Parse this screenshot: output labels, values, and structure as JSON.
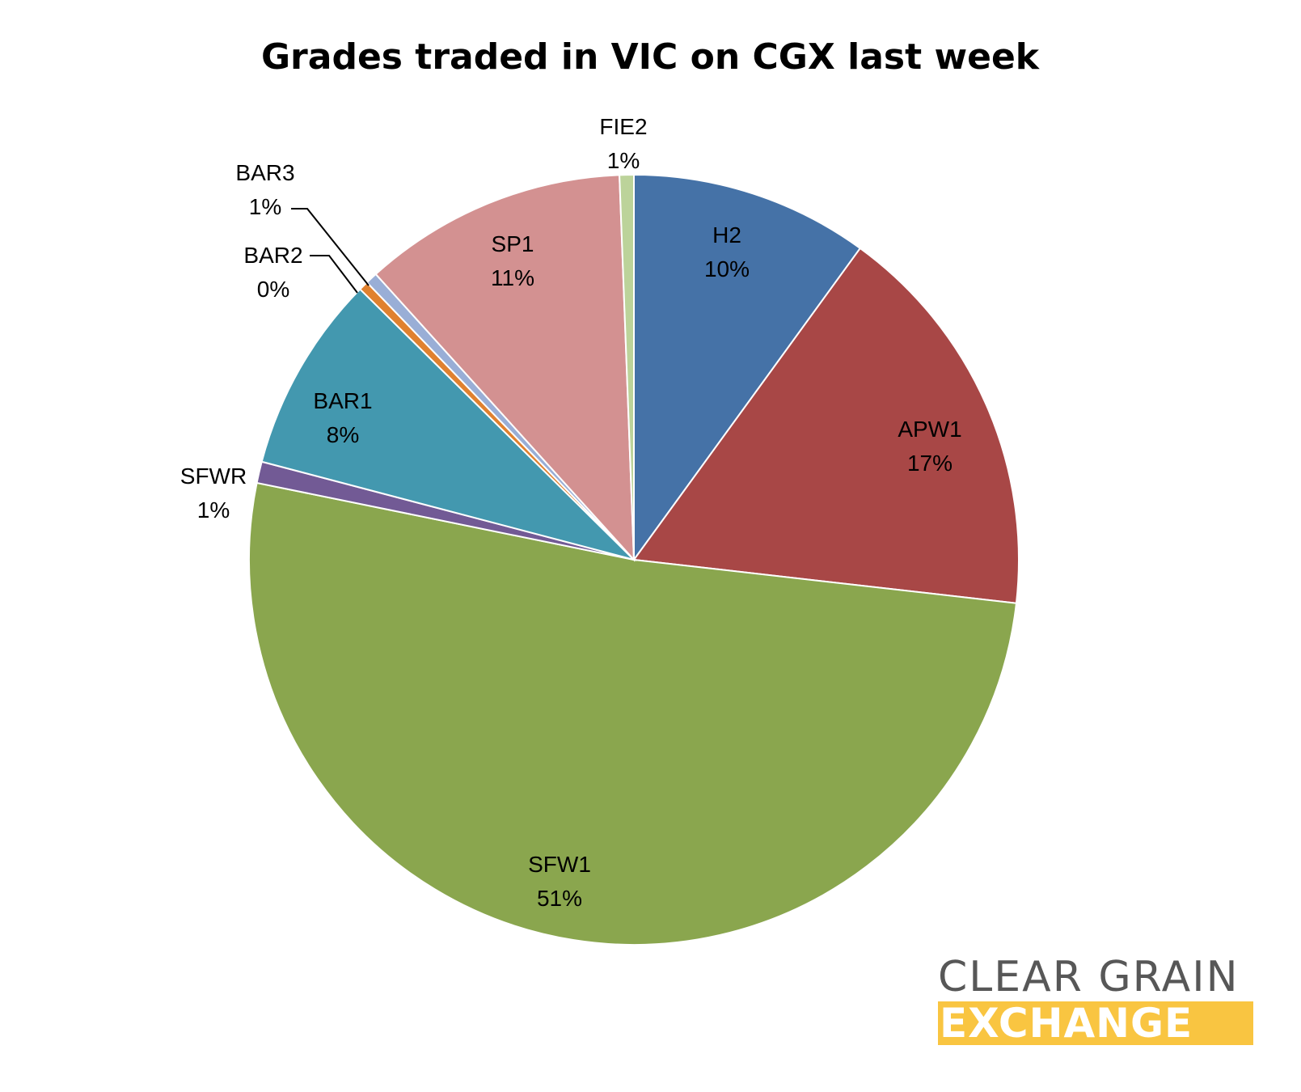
{
  "chart_data": {
    "type": "pie",
    "title": "Grades traded in VIC on CGX last week",
    "start_angle_deg": 0,
    "direction": "clockwise",
    "slices": [
      {
        "label": "H2",
        "pct_label": "10%",
        "value": 10.0,
        "color": "#4572a7"
      },
      {
        "label": "APW1",
        "pct_label": "17%",
        "value": 16.8,
        "color": "#a84746"
      },
      {
        "label": "SFW1",
        "pct_label": "51%",
        "value": 51.4,
        "color": "#8aa64e"
      },
      {
        "label": "SFWR",
        "pct_label": "1%",
        "value": 0.9,
        "color": "#725a95"
      },
      {
        "label": "BAR1",
        "pct_label": "8%",
        "value": 8.3,
        "color": "#4398af"
      },
      {
        "label": "BAR2",
        "pct_label": "0%",
        "value": 0.4,
        "color": "#e0812f"
      },
      {
        "label": "BAR3",
        "pct_label": "1%",
        "value": 0.5,
        "color": "#99aed6"
      },
      {
        "label": "SP1",
        "pct_label": "11%",
        "value": 11.1,
        "color": "#d39191"
      },
      {
        "label": "FIE2",
        "pct_label": "1%",
        "value": 0.6,
        "color": "#bcd39a"
      }
    ]
  },
  "logo": {
    "line1": "CLEAR GRAIN",
    "line2": "EXCHANGE",
    "band_color": "#f9c541"
  }
}
